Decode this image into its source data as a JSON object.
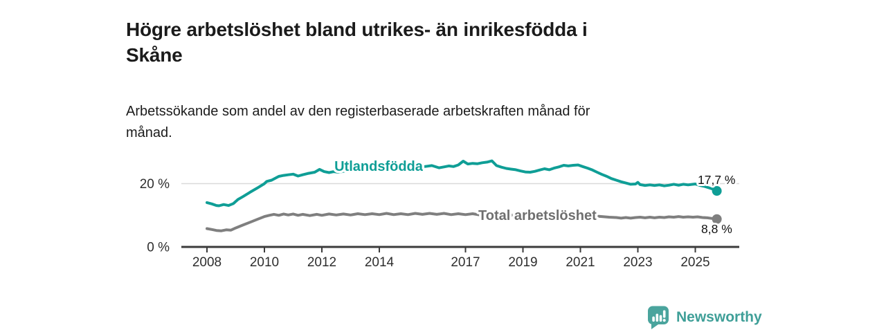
{
  "header": {
    "title_lines": [
      "Högre arbetslöshet bland utrikes- än inrikesfödda i",
      "Skåne"
    ],
    "subtitle_lines": [
      "Arbetssökande som andel av den registerbaserade arbetskraften månad för",
      "månad."
    ]
  },
  "chart_data": {
    "type": "line",
    "title": "Högre arbetslöshet bland utrikes- än inrikesfödda i Skåne",
    "subtitle": "Arbetssökande som andel av den registerbaserade arbetskraften månad för månad.",
    "xlabel": "",
    "ylabel": "",
    "unit": "%",
    "x_range": [
      2008.0,
      2025.75
    ],
    "ylim": [
      0,
      29
    ],
    "grid": "y-only",
    "gridlines": [
      20
    ],
    "x_ticks": [
      2008,
      2010,
      2012,
      2014,
      2017,
      2019,
      2021,
      2023,
      2025
    ],
    "y_ticks": [
      {
        "value": 0,
        "label": "0 %"
      },
      {
        "value": 20,
        "label": "20 %"
      }
    ],
    "axis_color": "#3b3b3b",
    "tick_text_color": "#2e2e2e",
    "gridline_color": "#d9d9d9",
    "end_label_color": "#111111",
    "series": [
      {
        "id": "utlandsfodda",
        "name": "Utlandsfödda",
        "color": "#0f9e96",
        "label_color": "#0f9e96",
        "end_value": 17.7,
        "end_label": "17,7 %",
        "points": [
          [
            2008.0,
            14.0
          ],
          [
            2008.17,
            13.6
          ],
          [
            2008.33,
            13.1
          ],
          [
            2008.42,
            13.0
          ],
          [
            2008.58,
            13.4
          ],
          [
            2008.75,
            13.1
          ],
          [
            2008.92,
            13.7
          ],
          [
            2009.08,
            15.0
          ],
          [
            2009.25,
            15.9
          ],
          [
            2009.5,
            17.3
          ],
          [
            2009.75,
            18.6
          ],
          [
            2010.0,
            20.0
          ],
          [
            2010.08,
            20.7
          ],
          [
            2010.25,
            21.1
          ],
          [
            2010.5,
            22.3
          ],
          [
            2010.67,
            22.6
          ],
          [
            2010.83,
            22.8
          ],
          [
            2011.0,
            23.0
          ],
          [
            2011.17,
            22.4
          ],
          [
            2011.33,
            22.8
          ],
          [
            2011.5,
            23.2
          ],
          [
            2011.75,
            23.6
          ],
          [
            2011.92,
            24.5
          ],
          [
            2012.08,
            23.8
          ],
          [
            2012.25,
            23.5
          ],
          [
            2012.42,
            23.8
          ],
          [
            2012.58,
            23.6
          ],
          [
            2012.75,
            23.9
          ],
          [
            2012.92,
            24.1
          ],
          [
            2013.17,
            24.3
          ],
          [
            2013.42,
            24.1
          ],
          [
            2013.67,
            24.5
          ],
          [
            2013.92,
            24.6
          ],
          [
            2014.17,
            24.9
          ],
          [
            2014.42,
            24.7
          ],
          [
            2014.67,
            25.0
          ],
          [
            2014.92,
            25.1
          ],
          [
            2015.17,
            25.3
          ],
          [
            2015.42,
            25.2
          ],
          [
            2015.67,
            25.5
          ],
          [
            2015.83,
            25.7
          ],
          [
            2016.08,
            25.0
          ],
          [
            2016.25,
            25.3
          ],
          [
            2016.42,
            25.6
          ],
          [
            2016.58,
            25.4
          ],
          [
            2016.75,
            25.9
          ],
          [
            2016.92,
            27.1
          ],
          [
            2017.08,
            26.2
          ],
          [
            2017.25,
            26.4
          ],
          [
            2017.42,
            26.3
          ],
          [
            2017.58,
            26.6
          ],
          [
            2017.75,
            26.8
          ],
          [
            2017.92,
            27.2
          ],
          [
            2018.08,
            25.7
          ],
          [
            2018.25,
            25.2
          ],
          [
            2018.42,
            24.8
          ],
          [
            2018.58,
            24.6
          ],
          [
            2018.75,
            24.4
          ],
          [
            2018.92,
            24.0
          ],
          [
            2019.08,
            23.7
          ],
          [
            2019.25,
            23.6
          ],
          [
            2019.42,
            23.9
          ],
          [
            2019.58,
            24.3
          ],
          [
            2019.75,
            24.7
          ],
          [
            2019.92,
            24.4
          ],
          [
            2020.08,
            24.9
          ],
          [
            2020.25,
            25.3
          ],
          [
            2020.42,
            25.8
          ],
          [
            2020.58,
            25.6
          ],
          [
            2020.75,
            25.8
          ],
          [
            2020.92,
            25.9
          ],
          [
            2021.08,
            25.4
          ],
          [
            2021.25,
            24.9
          ],
          [
            2021.42,
            24.3
          ],
          [
            2021.58,
            23.6
          ],
          [
            2021.75,
            22.9
          ],
          [
            2021.92,
            22.3
          ],
          [
            2022.08,
            21.6
          ],
          [
            2022.25,
            21.1
          ],
          [
            2022.42,
            20.6
          ],
          [
            2022.58,
            20.2
          ],
          [
            2022.75,
            19.8
          ],
          [
            2022.92,
            19.9
          ],
          [
            2023.0,
            20.4
          ],
          [
            2023.08,
            19.7
          ],
          [
            2023.25,
            19.4
          ],
          [
            2023.42,
            19.6
          ],
          [
            2023.58,
            19.4
          ],
          [
            2023.75,
            19.6
          ],
          [
            2023.92,
            19.3
          ],
          [
            2024.08,
            19.5
          ],
          [
            2024.25,
            19.8
          ],
          [
            2024.42,
            19.5
          ],
          [
            2024.58,
            19.8
          ],
          [
            2024.75,
            19.6
          ],
          [
            2024.92,
            19.8
          ],
          [
            2025.0,
            19.9
          ],
          [
            2025.17,
            19.4
          ],
          [
            2025.33,
            19.1
          ],
          [
            2025.5,
            18.6
          ],
          [
            2025.67,
            18.1
          ],
          [
            2025.75,
            17.7
          ]
        ]
      },
      {
        "id": "total-arbetsloshet",
        "name": "Total arbetslöshet",
        "color": "#7f7f7f",
        "label_color": "#6f6f6f",
        "end_value": 8.8,
        "end_label": "8,8 %",
        "points": [
          [
            2008.0,
            5.8
          ],
          [
            2008.17,
            5.5
          ],
          [
            2008.33,
            5.2
          ],
          [
            2008.5,
            5.1
          ],
          [
            2008.67,
            5.4
          ],
          [
            2008.83,
            5.3
          ],
          [
            2009.0,
            6.0
          ],
          [
            2009.25,
            6.9
          ],
          [
            2009.5,
            7.8
          ],
          [
            2009.75,
            8.7
          ],
          [
            2010.0,
            9.6
          ],
          [
            2010.17,
            10.0
          ],
          [
            2010.33,
            10.3
          ],
          [
            2010.5,
            10.0
          ],
          [
            2010.67,
            10.4
          ],
          [
            2010.83,
            10.1
          ],
          [
            2011.0,
            10.4
          ],
          [
            2011.17,
            10.0
          ],
          [
            2011.33,
            10.3
          ],
          [
            2011.58,
            9.9
          ],
          [
            2011.83,
            10.3
          ],
          [
            2012.0,
            10.0
          ],
          [
            2012.25,
            10.4
          ],
          [
            2012.5,
            10.1
          ],
          [
            2012.75,
            10.4
          ],
          [
            2013.0,
            10.1
          ],
          [
            2013.25,
            10.5
          ],
          [
            2013.5,
            10.2
          ],
          [
            2013.75,
            10.5
          ],
          [
            2014.0,
            10.2
          ],
          [
            2014.25,
            10.6
          ],
          [
            2014.5,
            10.2
          ],
          [
            2014.75,
            10.5
          ],
          [
            2015.0,
            10.2
          ],
          [
            2015.25,
            10.6
          ],
          [
            2015.5,
            10.3
          ],
          [
            2015.75,
            10.6
          ],
          [
            2016.0,
            10.3
          ],
          [
            2016.25,
            10.6
          ],
          [
            2016.5,
            10.2
          ],
          [
            2016.75,
            10.5
          ],
          [
            2017.0,
            10.2
          ],
          [
            2017.25,
            10.5
          ],
          [
            2017.5,
            10.1
          ],
          [
            2017.75,
            10.4
          ],
          [
            2018.0,
            10.1
          ],
          [
            2018.25,
            10.3
          ],
          [
            2018.5,
            9.9
          ],
          [
            2018.75,
            10.2
          ],
          [
            2019.0,
            9.9
          ],
          [
            2019.25,
            10.0
          ],
          [
            2019.5,
            9.7
          ],
          [
            2019.75,
            9.9
          ],
          [
            2020.0,
            10.1
          ],
          [
            2020.25,
            10.6
          ],
          [
            2020.5,
            10.8
          ],
          [
            2020.75,
            10.6
          ],
          [
            2021.0,
            10.4
          ],
          [
            2021.25,
            10.1
          ],
          [
            2021.5,
            9.8
          ],
          [
            2021.75,
            9.6
          ],
          [
            2022.0,
            9.4
          ],
          [
            2022.25,
            9.3
          ],
          [
            2022.42,
            9.1
          ],
          [
            2022.58,
            9.3
          ],
          [
            2022.75,
            9.1
          ],
          [
            2022.92,
            9.3
          ],
          [
            2023.08,
            9.4
          ],
          [
            2023.25,
            9.2
          ],
          [
            2023.42,
            9.4
          ],
          [
            2023.58,
            9.2
          ],
          [
            2023.75,
            9.4
          ],
          [
            2023.92,
            9.3
          ],
          [
            2024.08,
            9.5
          ],
          [
            2024.25,
            9.4
          ],
          [
            2024.42,
            9.6
          ],
          [
            2024.58,
            9.4
          ],
          [
            2024.75,
            9.5
          ],
          [
            2024.92,
            9.4
          ],
          [
            2025.08,
            9.5
          ],
          [
            2025.25,
            9.3
          ],
          [
            2025.42,
            9.2
          ],
          [
            2025.58,
            9.0
          ],
          [
            2025.75,
            8.8
          ]
        ]
      }
    ],
    "legend_position": "inline-labels"
  },
  "footer": {
    "brand": "Newsworthy",
    "icon": "bar-chart-speech-bubble",
    "icon_color": "#4aa49d",
    "text_color": "#3f9f98"
  }
}
